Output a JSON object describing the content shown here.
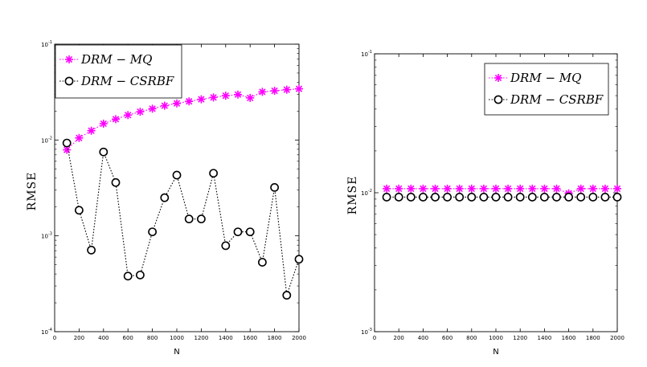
{
  "chart_data": [
    {
      "type": "line",
      "xlabel": "N",
      "ylabel": "RMSE",
      "yscale": "log",
      "xlim": [
        0,
        2000
      ],
      "ylim": [
        0.0001,
        0.1
      ],
      "xticks": [
        "0",
        "200",
        "400",
        "600",
        "800",
        "1000",
        "1200",
        "1400",
        "1600",
        "1800",
        "2000"
      ],
      "yticks": [
        {
          "base": "10",
          "exp": "-1"
        },
        {
          "base": "10",
          "exp": "-2"
        },
        {
          "base": "10",
          "exp": "-3"
        },
        {
          "base": "10",
          "exp": "-4"
        }
      ],
      "legend_position": "top-left",
      "x": [
        100,
        200,
        300,
        400,
        500,
        600,
        700,
        800,
        900,
        1000,
        1100,
        1200,
        1300,
        1400,
        1500,
        1600,
        1700,
        1800,
        1900,
        2000
      ],
      "series": [
        {
          "name": "DRM − MQ",
          "color": "#ff00ff",
          "marker": "asterisk",
          "values": [
            0.0079,
            0.0105,
            0.0125,
            0.0148,
            0.0165,
            0.0182,
            0.0197,
            0.0212,
            0.0228,
            0.0241,
            0.0253,
            0.0266,
            0.0278,
            0.029,
            0.0298,
            0.0275,
            0.0318,
            0.0326,
            0.0335,
            0.0342
          ]
        },
        {
          "name": "DRM − CSRBF",
          "color": "#000000",
          "marker": "circle",
          "values": [
            0.0093,
            0.00185,
            0.00071,
            0.0075,
            0.0036,
            0.00038,
            0.00039,
            0.0011,
            0.0025,
            0.0043,
            0.0015,
            0.0015,
            0.0045,
            0.00079,
            0.0011,
            0.0011,
            0.00053,
            0.0032,
            0.00024,
            0.00057
          ]
        }
      ]
    },
    {
      "type": "line",
      "xlabel": "N",
      "ylabel": "RMSE",
      "yscale": "log",
      "xlim": [
        0,
        2000
      ],
      "ylim": [
        0.001,
        0.1
      ],
      "xticks": [
        "0",
        "200",
        "400",
        "600",
        "800",
        "1000",
        "1200",
        "1400",
        "1600",
        "1800",
        "2000"
      ],
      "yticks": [
        {
          "base": "10",
          "exp": "-1"
        },
        {
          "base": "10",
          "exp": "-2"
        },
        {
          "base": "10",
          "exp": "-3"
        }
      ],
      "legend_position": "top-right",
      "x": [
        100,
        200,
        300,
        400,
        500,
        600,
        700,
        800,
        900,
        1000,
        1100,
        1200,
        1300,
        1400,
        1500,
        1600,
        1700,
        1800,
        1900,
        2000
      ],
      "series": [
        {
          "name": "DRM − MQ",
          "color": "#ff00ff",
          "marker": "asterisk",
          "values": [
            0.0107,
            0.0107,
            0.0107,
            0.0107,
            0.0107,
            0.0107,
            0.0107,
            0.0107,
            0.0107,
            0.0107,
            0.0107,
            0.0107,
            0.0107,
            0.0107,
            0.0107,
            0.0099,
            0.0107,
            0.0107,
            0.0107,
            0.0107
          ]
        },
        {
          "name": "DRM − CSRBF",
          "color": "#000000",
          "marker": "circle",
          "values": [
            0.0093,
            0.0093,
            0.0093,
            0.0093,
            0.0093,
            0.0093,
            0.0093,
            0.0093,
            0.0093,
            0.0093,
            0.0093,
            0.0093,
            0.0093,
            0.0093,
            0.0093,
            0.0093,
            0.0093,
            0.0093,
            0.0093,
            0.0093
          ]
        }
      ]
    }
  ]
}
